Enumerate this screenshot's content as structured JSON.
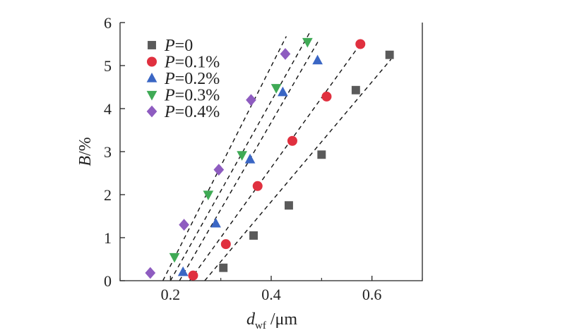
{
  "chart_data": {
    "type": "scatter",
    "xlabel": {
      "main": "d",
      "sub": "wf",
      "unit": " /μm"
    },
    "ylabel": {
      "main": "B",
      "unit": "/%"
    },
    "xlim": [
      0.1,
      0.7
    ],
    "ylim": [
      0,
      6
    ],
    "xticks": [
      0.2,
      0.4,
      0.6
    ],
    "xtick_labels": [
      "0.2",
      "0.4",
      "0.6"
    ],
    "yticks": [
      0,
      1,
      2,
      3,
      4,
      5,
      6
    ],
    "ytick_labels": [
      "0",
      "1",
      "2",
      "3",
      "4",
      "5",
      "6"
    ],
    "grid": false,
    "legend_position": "top-left",
    "fit_lines": "dashed",
    "series": [
      {
        "name_italic": "P",
        "name_rest": "=0",
        "marker": "square",
        "color": "#5a5a5a",
        "points": [
          [
            0.305,
            0.3
          ],
          [
            0.365,
            1.05
          ],
          [
            0.435,
            1.75
          ],
          [
            0.5,
            2.93
          ],
          [
            0.568,
            4.43
          ],
          [
            0.635,
            5.25
          ]
        ],
        "fit": [
          [
            0.268,
            0
          ],
          [
            0.638,
            5.15
          ]
        ]
      },
      {
        "name_italic": "P",
        "name_rest": "=0.1%",
        "marker": "circle",
        "color": "#e0303f",
        "points": [
          [
            0.245,
            0.12
          ],
          [
            0.31,
            0.85
          ],
          [
            0.373,
            2.2
          ],
          [
            0.442,
            3.25
          ],
          [
            0.51,
            4.28
          ],
          [
            0.577,
            5.5
          ]
        ],
        "fit": [
          [
            0.238,
            0
          ],
          [
            0.58,
            5.55
          ]
        ]
      },
      {
        "name_italic": "P",
        "name_rest": "=0.2%",
        "marker": "triangle-up",
        "color": "#3a66c4",
        "points": [
          [
            0.225,
            0.2
          ],
          [
            0.29,
            1.33
          ],
          [
            0.358,
            2.82
          ],
          [
            0.423,
            4.38
          ],
          [
            0.492,
            5.12
          ]
        ],
        "fit": [
          [
            0.218,
            0
          ],
          [
            0.495,
            5.6
          ]
        ]
      },
      {
        "name_italic": "P",
        "name_rest": "=0.3%",
        "marker": "triangle-down",
        "color": "#3faa55",
        "points": [
          [
            0.208,
            0.55
          ],
          [
            0.275,
            2.0
          ],
          [
            0.342,
            2.92
          ],
          [
            0.41,
            4.48
          ],
          [
            0.472,
            5.55
          ]
        ],
        "fit": [
          [
            0.2,
            0
          ],
          [
            0.478,
            5.8
          ]
        ]
      },
      {
        "name_italic": "P",
        "name_rest": "=0.4%",
        "marker": "diamond",
        "color": "#8e5cc0",
        "points": [
          [
            0.16,
            0.18
          ],
          [
            0.227,
            1.3
          ],
          [
            0.296,
            2.58
          ],
          [
            0.36,
            4.2
          ],
          [
            0.428,
            5.27
          ]
        ],
        "fit": [
          [
            0.185,
            0
          ],
          [
            0.43,
            5.68
          ]
        ]
      }
    ]
  }
}
